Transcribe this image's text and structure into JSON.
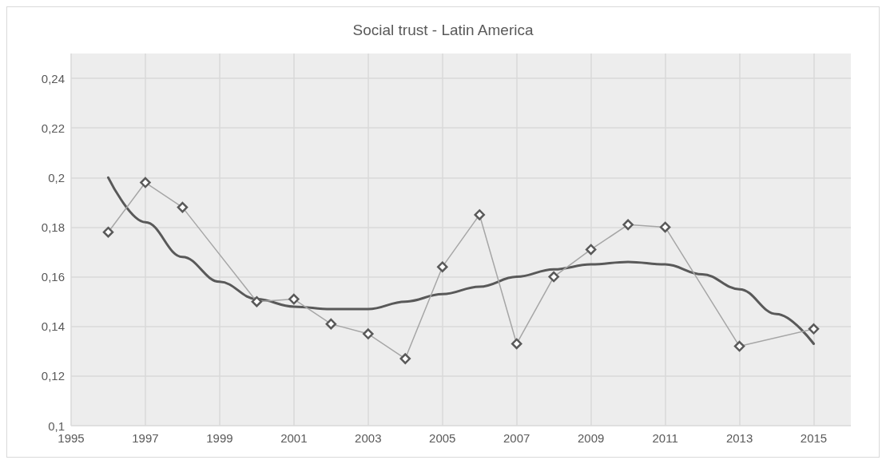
{
  "chart_data": {
    "type": "line",
    "title": "Social trust - Latin America",
    "xlim": [
      1995,
      2016
    ],
    "xticks": [
      1995,
      1997,
      1999,
      2001,
      2003,
      2005,
      2007,
      2009,
      2011,
      2013,
      2015
    ],
    "ylim": [
      0.1,
      0.25
    ],
    "yticks": [
      {
        "value": 0.1,
        "label": "0,1"
      },
      {
        "value": 0.12,
        "label": "0,12"
      },
      {
        "value": 0.14,
        "label": "0,14"
      },
      {
        "value": 0.16,
        "label": "0,16"
      },
      {
        "value": 0.18,
        "label": "0,18"
      },
      {
        "value": 0.2,
        "label": "0,2"
      },
      {
        "value": 0.22,
        "label": "0,22"
      },
      {
        "value": 0.24,
        "label": "0,24"
      }
    ],
    "grid": true,
    "series": [
      {
        "color": "#a6a6a6",
        "marker": "diamond",
        "line_style": "solid",
        "x": [
          1996,
          1997,
          1998,
          2000,
          2001,
          2002,
          2003,
          2004,
          2005,
          2006,
          2007,
          2008,
          2009,
          2010,
          2011,
          2013,
          2015
        ],
        "values": [
          0.178,
          0.198,
          0.188,
          0.15,
          0.151,
          0.141,
          0.137,
          0.127,
          0.164,
          0.185,
          0.133,
          0.16,
          0.171,
          0.181,
          0.18,
          0.132,
          0.139
        ]
      },
      {
        "color": "#595959",
        "marker": "none",
        "line_style": "solid",
        "x": [
          1996,
          1997,
          1998,
          1999,
          2000,
          2001,
          2002,
          2003,
          2004,
          2005,
          2006,
          2007,
          2008,
          2009,
          2010,
          2011,
          2012,
          2013,
          2014,
          2015
        ],
        "values": [
          0.2,
          0.182,
          0.168,
          0.158,
          0.151,
          0.148,
          0.147,
          0.147,
          0.15,
          0.153,
          0.156,
          0.16,
          0.163,
          0.165,
          0.166,
          0.165,
          0.161,
          0.155,
          0.145,
          0.133
        ]
      }
    ]
  }
}
